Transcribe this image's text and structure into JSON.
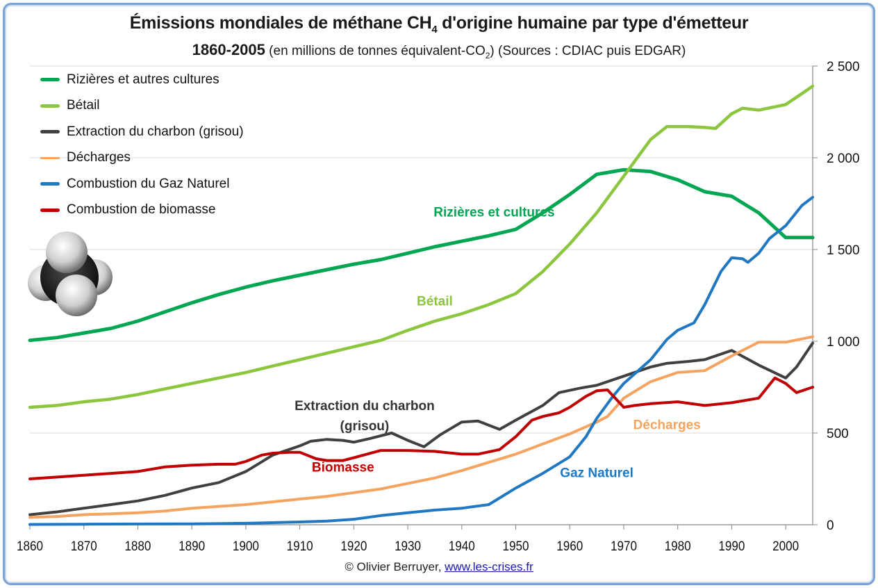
{
  "chart_data": {
    "type": "line",
    "title": "Émissions mondiales de méthane CH4 d'origine humaine par type d'émetteur",
    "title_parts": {
      "main": "Émissions mondiales de méthane CH",
      "sub": "4",
      "rest": " d'origine humaine par type d'émetteur"
    },
    "subtitle_parts": {
      "years": "1860-2005",
      "unit_pre": " (en millions de tonnes équivalent-CO",
      "unit_sub": "2",
      "unit_post": ") (Sources : CDIAC puis EDGAR)"
    },
    "xlabel": "",
    "ylabel": "",
    "xlim": [
      1860,
      2005
    ],
    "ylim": [
      0,
      2500
    ],
    "y_axis_side": "right",
    "x_ticks": [
      1860,
      1870,
      1880,
      1890,
      1900,
      1910,
      1920,
      1930,
      1940,
      1950,
      1960,
      1970,
      1980,
      1990,
      2000
    ],
    "y_ticks": [
      0,
      500,
      1000,
      1500,
      2000,
      2500
    ],
    "y_tick_labels": [
      "0",
      "500",
      "1 000",
      "1 500",
      "2 000",
      "2 500"
    ],
    "grid": "horizontal",
    "legend_position": "top-left",
    "series": [
      {
        "name": "Rizières et autres cultures",
        "color": "#00a651",
        "x": [
          1860,
          1865,
          1870,
          1875,
          1880,
          1885,
          1890,
          1895,
          1900,
          1905,
          1910,
          1915,
          1920,
          1925,
          1930,
          1935,
          1940,
          1945,
          1950,
          1955,
          1960,
          1965,
          1970,
          1975,
          1980,
          1985,
          1990,
          1995,
          2000,
          2005
        ],
        "values": [
          1005,
          1020,
          1045,
          1070,
          1110,
          1160,
          1210,
          1255,
          1295,
          1330,
          1360,
          1390,
          1420,
          1445,
          1480,
          1515,
          1545,
          1575,
          1610,
          1700,
          1800,
          1910,
          1935,
          1925,
          1880,
          1815,
          1790,
          1700,
          1565,
          1565
        ]
      },
      {
        "name": "Bétail",
        "color": "#8cc63f",
        "x": [
          1860,
          1865,
          1870,
          1875,
          1880,
          1885,
          1890,
          1895,
          1900,
          1905,
          1910,
          1915,
          1920,
          1925,
          1930,
          1935,
          1940,
          1945,
          1950,
          1955,
          1960,
          1965,
          1970,
          1975,
          1978,
          1982,
          1985,
          1987,
          1990,
          1992,
          1995,
          2000,
          2003,
          2005
        ],
        "values": [
          640,
          650,
          670,
          685,
          710,
          740,
          770,
          800,
          830,
          865,
          900,
          935,
          970,
          1005,
          1060,
          1110,
          1150,
          1200,
          1260,
          1380,
          1530,
          1700,
          1900,
          2100,
          2170,
          2170,
          2165,
          2160,
          2240,
          2270,
          2260,
          2290,
          2350,
          2390
        ]
      },
      {
        "name": "Extraction du charbon (grisou)",
        "color": "#404040",
        "x": [
          1860,
          1865,
          1870,
          1875,
          1880,
          1885,
          1890,
          1895,
          1900,
          1905,
          1910,
          1912,
          1915,
          1918,
          1920,
          1923,
          1927,
          1930,
          1933,
          1936,
          1940,
          1943,
          1947,
          1950,
          1955,
          1958,
          1962,
          1965,
          1970,
          1975,
          1978,
          1982,
          1985,
          1990,
          1995,
          2000,
          2002,
          2005
        ],
        "values": [
          55,
          70,
          90,
          110,
          130,
          160,
          200,
          230,
          290,
          380,
          430,
          455,
          465,
          460,
          450,
          470,
          500,
          460,
          425,
          490,
          560,
          565,
          520,
          570,
          650,
          720,
          745,
          760,
          810,
          860,
          880,
          890,
          900,
          950,
          870,
          800,
          860,
          990
        ]
      },
      {
        "name": "Décharges",
        "color": "#f4a460",
        "x": [
          1860,
          1865,
          1870,
          1875,
          1880,
          1885,
          1890,
          1895,
          1900,
          1905,
          1910,
          1915,
          1920,
          1925,
          1930,
          1935,
          1940,
          1945,
          1950,
          1955,
          1960,
          1965,
          1967,
          1970,
          1975,
          1980,
          1985,
          1990,
          1995,
          2000,
          2005
        ],
        "values": [
          40,
          45,
          55,
          60,
          65,
          75,
          90,
          100,
          110,
          125,
          140,
          155,
          175,
          195,
          225,
          255,
          295,
          340,
          385,
          440,
          495,
          560,
          590,
          690,
          780,
          830,
          840,
          920,
          995,
          995,
          1025
        ]
      },
      {
        "name": "Combustion du Gaz Naturel",
        "color": "#1f78c1",
        "x": [
          1860,
          1870,
          1880,
          1890,
          1900,
          1910,
          1915,
          1920,
          1925,
          1930,
          1935,
          1940,
          1945,
          1950,
          1955,
          1960,
          1963,
          1965,
          1968,
          1970,
          1975,
          1978,
          1980,
          1983,
          1985,
          1988,
          1990,
          1992,
          1993,
          1995,
          1997,
          2000,
          2003,
          2005
        ],
        "values": [
          2,
          3,
          4,
          5,
          8,
          15,
          20,
          30,
          50,
          65,
          80,
          90,
          110,
          200,
          280,
          370,
          480,
          580,
          700,
          770,
          900,
          1010,
          1060,
          1100,
          1200,
          1380,
          1455,
          1450,
          1430,
          1480,
          1560,
          1630,
          1740,
          1785
        ]
      },
      {
        "name": "Combustion de biomasse",
        "color": "#c00000",
        "x": [
          1860,
          1865,
          1870,
          1875,
          1880,
          1885,
          1890,
          1895,
          1898,
          1900,
          1903,
          1905,
          1908,
          1910,
          1913,
          1915,
          1918,
          1920,
          1925,
          1930,
          1935,
          1940,
          1943,
          1947,
          1950,
          1953,
          1955,
          1958,
          1960,
          1963,
          1965,
          1967,
          1970,
          1972,
          1975,
          1980,
          1985,
          1990,
          1995,
          1998,
          2000,
          2002,
          2005
        ],
        "values": [
          250,
          260,
          270,
          280,
          290,
          315,
          325,
          330,
          330,
          345,
          380,
          390,
          395,
          395,
          360,
          350,
          350,
          365,
          405,
          405,
          400,
          385,
          385,
          410,
          480,
          570,
          590,
          610,
          640,
          700,
          730,
          735,
          640,
          650,
          660,
          670,
          650,
          665,
          690,
          800,
          770,
          720,
          750
        ]
      }
    ],
    "annotations": [
      {
        "text": "Rizières et cultures",
        "color": "#00a651",
        "x": 1946,
        "y": 1680
      },
      {
        "text": "Bétail",
        "color": "#8cc63f",
        "x": 1935,
        "y": 1195
      },
      {
        "text": "Extraction du charbon",
        "color": "#333333",
        "x": 1922,
        "y": 625
      },
      {
        "text": "(grisou)",
        "color": "#333333",
        "x": 1922,
        "y": 515
      },
      {
        "text": "Biomasse",
        "color": "#c00000",
        "x": 1918,
        "y": 290
      },
      {
        "text": "Gaz Naturel",
        "color": "#1f78c1",
        "x": 1965,
        "y": 260
      },
      {
        "text": "Décharges",
        "color": "#f4a460",
        "x": 1978,
        "y": 520
      }
    ]
  },
  "credit": {
    "text": "© Olivier Berruyer, ",
    "link": "www.les-crises.fr"
  },
  "image": {
    "molecule": "methane-molecule-icon"
  }
}
